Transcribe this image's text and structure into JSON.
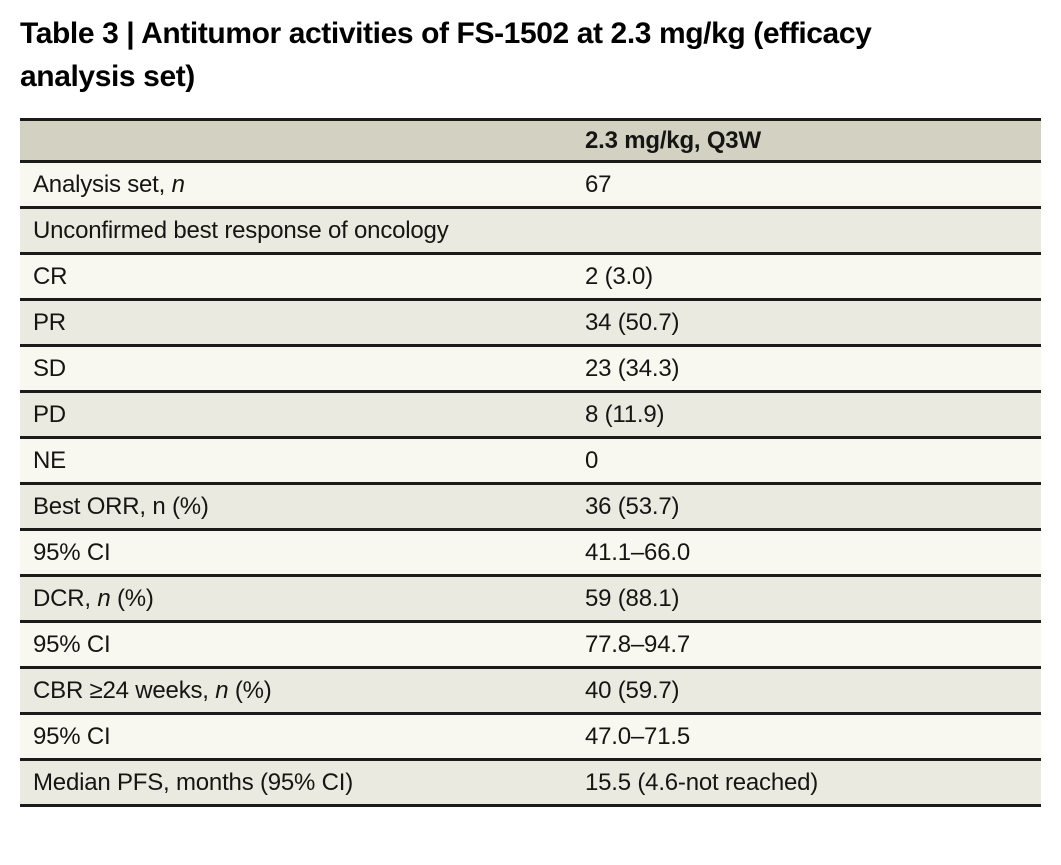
{
  "title": {
    "full": "Table 3 | Antitumor activities of FS-1502 at 2.3 mg/kg (efficacy analysis set)",
    "lines": [
      "Table 3 | Antitumor activities of FS-1502 at 2.3 mg/kg (efficacy",
      "analysis set)"
    ]
  },
  "table": {
    "header": {
      "label": "",
      "value": "2.3 mg/kg, Q3W"
    },
    "rows": [
      {
        "label": [
          {
            "text": "Analysis set, "
          },
          {
            "text": "n",
            "italic": true
          }
        ],
        "value": "67"
      },
      {
        "label": [
          {
            "text": "Unconfirmed best response of oncology"
          }
        ],
        "span": true
      },
      {
        "label": [
          {
            "text": "CR"
          }
        ],
        "value": "2 (3.0)"
      },
      {
        "label": [
          {
            "text": "PR"
          }
        ],
        "value": "34 (50.7)"
      },
      {
        "label": [
          {
            "text": "SD"
          }
        ],
        "value": "23 (34.3)"
      },
      {
        "label": [
          {
            "text": "PD"
          }
        ],
        "value": "8 (11.9)"
      },
      {
        "label": [
          {
            "text": "NE"
          }
        ],
        "value": "0"
      },
      {
        "label": [
          {
            "text": "Best ORR, n (%)"
          }
        ],
        "value": "36 (53.7)"
      },
      {
        "label": [
          {
            "text": "95% CI"
          }
        ],
        "value": "41.1–66.0"
      },
      {
        "label": [
          {
            "text": "DCR, "
          },
          {
            "text": "n",
            "italic": true
          },
          {
            "text": " (%)"
          }
        ],
        "value": "59 (88.1)"
      },
      {
        "label": [
          {
            "text": "95% CI"
          }
        ],
        "value": "77.8–94.7"
      },
      {
        "label": [
          {
            "text": "CBR ≥24 weeks, "
          },
          {
            "text": "n",
            "italic": true
          },
          {
            "text": " (%)"
          }
        ],
        "value": "40 (59.7)"
      },
      {
        "label": [
          {
            "text": "95% CI"
          }
        ],
        "value": "47.0–71.5"
      },
      {
        "label": [
          {
            "text": "Median PFS, months (95% CI)"
          }
        ],
        "value": "15.5 (4.6-not reached)"
      }
    ]
  },
  "colors": {
    "header_bg": "#d3d2c2",
    "row_light": "#f8f8f1",
    "row_dark": "#eaeae1",
    "rule": "#1b1b19",
    "text": "#151513",
    "page_bg": "#ffffff"
  }
}
